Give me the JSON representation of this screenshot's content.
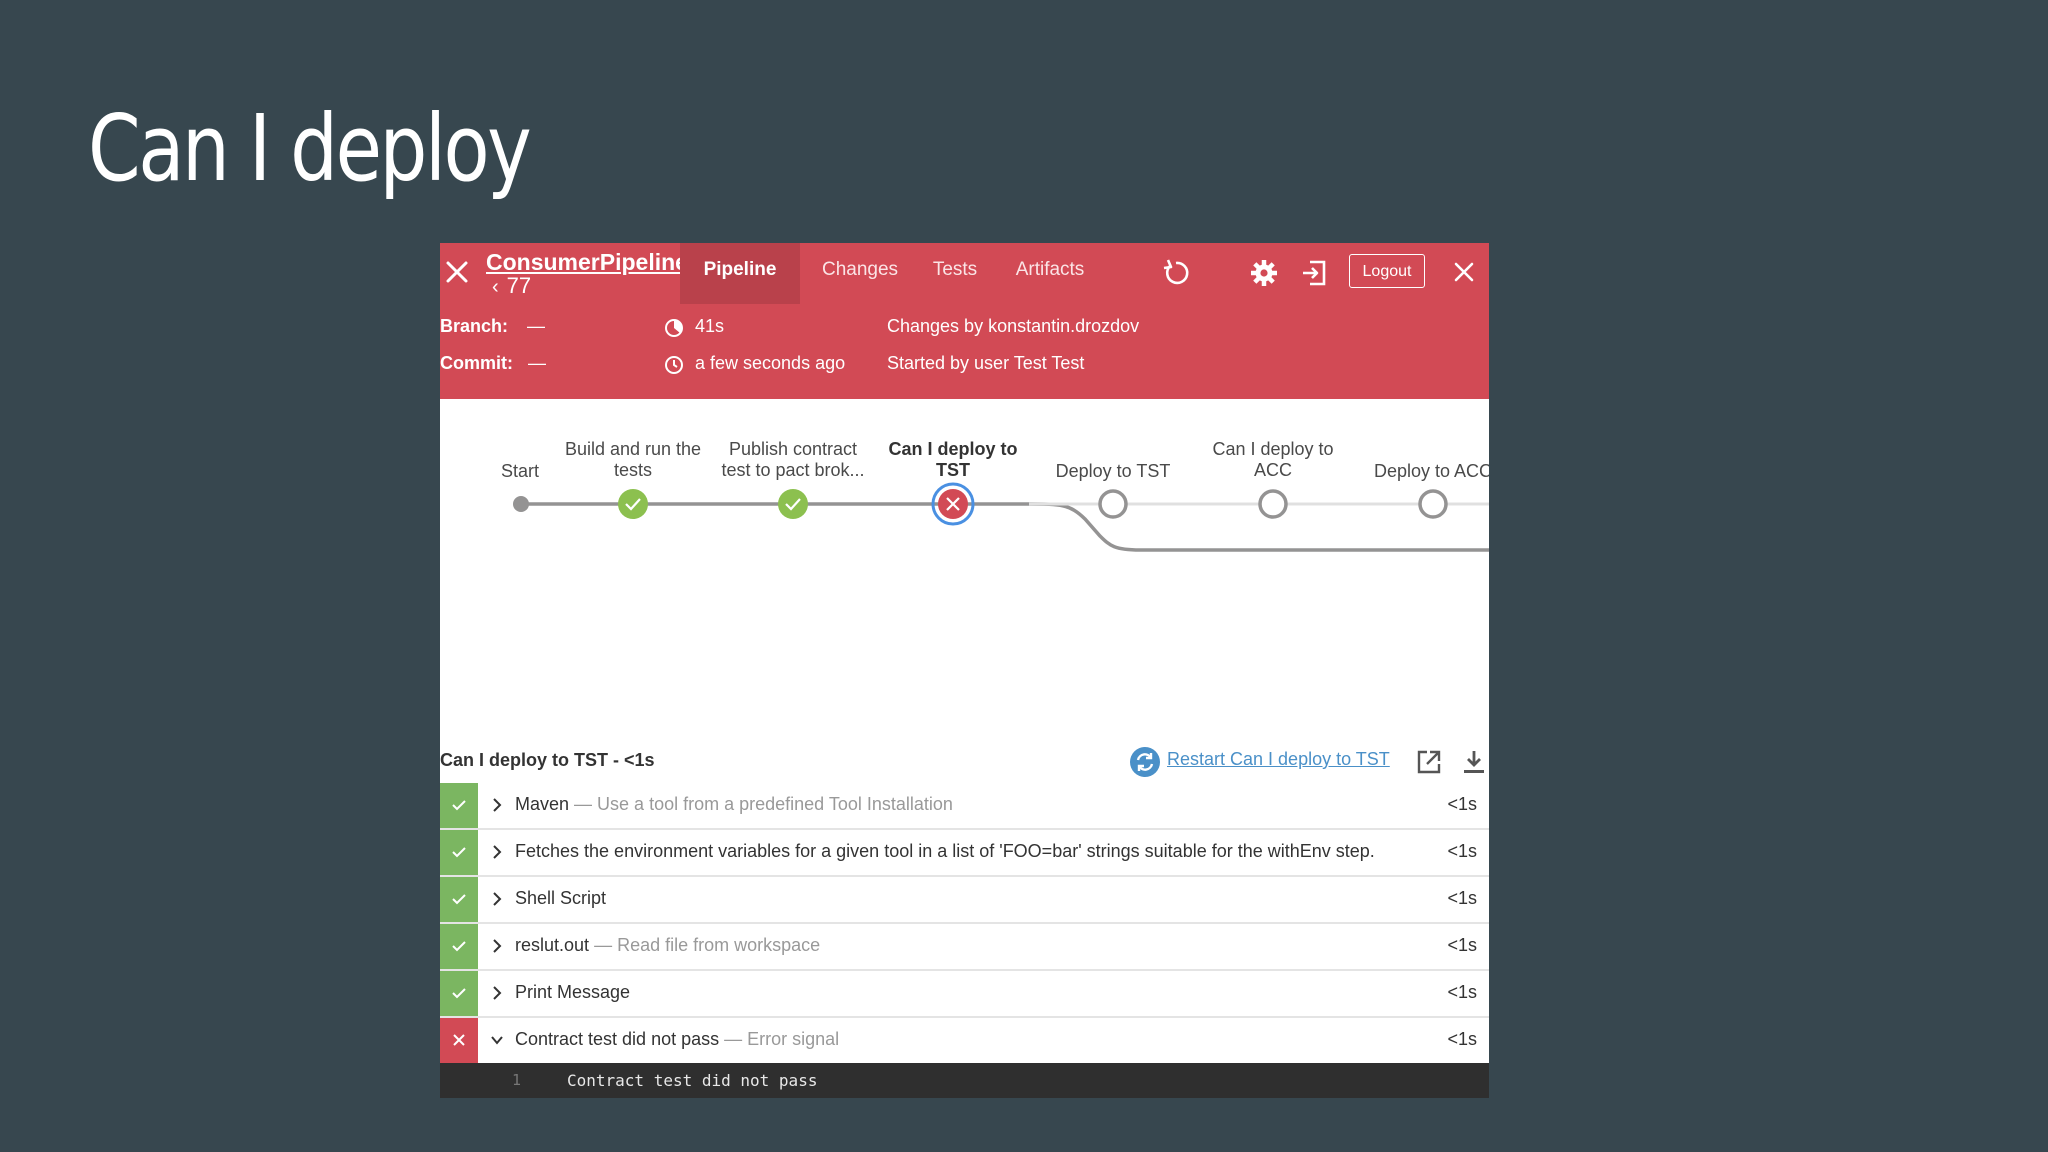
{
  "slide": {
    "title": "Can I deploy"
  },
  "topbar": {
    "pipeline_name": "ConsumerPipeline",
    "run_number": "77",
    "tabs": [
      {
        "label": "Pipeline",
        "active": true
      },
      {
        "label": "Changes",
        "active": false
      },
      {
        "label": "Tests",
        "active": false
      },
      {
        "label": "Artifacts",
        "active": false
      }
    ],
    "logout_label": "Logout",
    "accent_color": "#d24a55"
  },
  "header": {
    "branch_label": "Branch:",
    "branch_value": "—",
    "commit_label": "Commit:",
    "commit_value": "—",
    "duration": "41s",
    "started_ago": "a few seconds ago",
    "changes_by": "Changes by konstantin.drozdov",
    "started_by": "Started by user Test Test"
  },
  "pipeline_graph": {
    "stages": [
      {
        "label": "Start",
        "status": "start"
      },
      {
        "label": "Build and run the tests",
        "status": "success"
      },
      {
        "label": "Publish contract test to pact brok...",
        "status": "success"
      },
      {
        "label": "Can I deploy to TST",
        "status": "failed",
        "selected": true
      },
      {
        "label": "Deploy to TST",
        "status": "not-run"
      },
      {
        "label": "Can I deploy to ACC",
        "status": "not-run"
      },
      {
        "label": "Deploy to ACC",
        "status": "not-run"
      }
    ]
  },
  "step_panel": {
    "title": "Can I deploy to TST - <1s",
    "restart_label": "Restart Can I deploy to TST",
    "steps": [
      {
        "name": "Maven",
        "desc": "— Use a tool from a predefined Tool Installation",
        "duration": "<1s",
        "status": "success"
      },
      {
        "name": "Fetches the environment variables for a given tool in a list of 'FOO=bar' strings suitable for the withEnv step.",
        "desc": "",
        "duration": "<1s",
        "status": "success"
      },
      {
        "name": "Shell Script",
        "desc": "",
        "duration": "<1s",
        "status": "success"
      },
      {
        "name": "reslut.out",
        "desc": "— Read file from workspace",
        "duration": "<1s",
        "status": "success"
      },
      {
        "name": "Print Message",
        "desc": "",
        "duration": "<1s",
        "status": "success"
      },
      {
        "name": "Contract test did not pass",
        "desc": "— Error signal",
        "duration": "<1s",
        "status": "failed"
      }
    ],
    "console": {
      "line_number": "1",
      "text": "Contract test did not pass"
    }
  }
}
